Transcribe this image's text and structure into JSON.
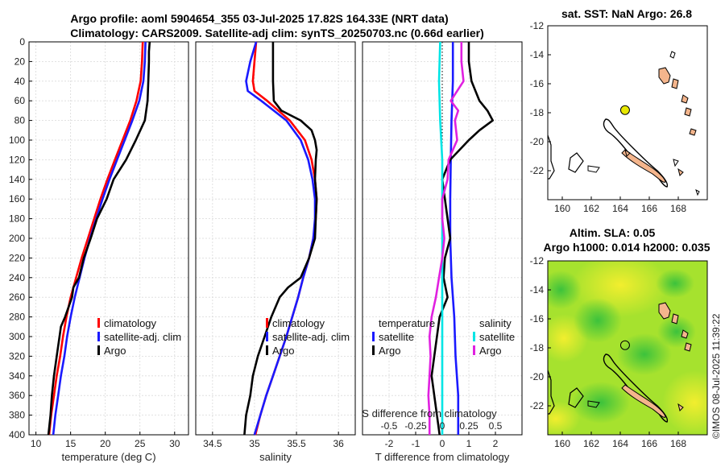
{
  "title_line1": "Argo profile: aoml 5904654_355 03-Jul-2025 17.82S 164.33E (NRT data)",
  "title_line2": "Climatology: CARS2009. Satellite-adj clim: synTS_20250703.nc (0.66d earlier)",
  "stamp": "©IMOS 08-Jul-2025 11:39:22",
  "colors": {
    "climatology": "#ff0000",
    "satellite": "#1a1aff",
    "argo": "#000000",
    "salinity_sat": "#00e5e5",
    "salinity_argo": "#e020e0",
    "land": "#f4b58c",
    "marker": "#e8e800"
  },
  "chart_data": [
    {
      "id": "temperature",
      "type": "line",
      "xlabel": "temperature (deg C)",
      "xlim": [
        9,
        32
      ],
      "xticks": [
        10,
        15,
        20,
        25,
        30
      ],
      "ylim": [
        0,
        400
      ],
      "yticks": [
        0,
        20,
        40,
        60,
        80,
        100,
        120,
        140,
        160,
        180,
        200,
        220,
        240,
        260,
        280,
        300,
        320,
        340,
        360,
        380,
        400
      ],
      "legend": {
        "items": [
          "climatology",
          "satellite-adj. clim",
          "Argo"
        ],
        "placement": "lower-right"
      },
      "series": [
        {
          "name": "climatology",
          "depth": [
            0,
            20,
            40,
            60,
            80,
            100,
            120,
            140,
            160,
            180,
            200,
            220,
            240,
            260,
            280,
            300,
            320,
            340,
            360,
            380,
            400
          ],
          "values": [
            25.4,
            25.3,
            25.1,
            24.5,
            23.6,
            22.5,
            21.4,
            20.3,
            19.3,
            18.4,
            17.5,
            16.6,
            15.8,
            15.0,
            14.4,
            13.9,
            13.5,
            13.0,
            12.6,
            12.2,
            11.9
          ]
        },
        {
          "name": "satellite-adj. clim",
          "depth": [
            0,
            20,
            40,
            60,
            80,
            100,
            120,
            140,
            160,
            180,
            200,
            220,
            240,
            260,
            280,
            300,
            320,
            340,
            360,
            380,
            400
          ],
          "values": [
            25.8,
            25.7,
            25.5,
            24.9,
            23.9,
            22.8,
            21.7,
            20.6,
            19.6,
            18.7,
            17.8,
            17.0,
            16.3,
            15.6,
            15.0,
            14.5,
            14.1,
            13.6,
            13.2,
            12.8,
            12.5
          ]
        },
        {
          "name": "Argo",
          "depth": [
            0,
            10,
            20,
            40,
            60,
            70,
            80,
            100,
            120,
            140,
            160,
            180,
            200,
            220,
            240,
            250,
            260,
            280,
            290,
            300,
            320,
            340,
            360,
            380,
            400
          ],
          "values": [
            26.4,
            26.3,
            26.3,
            26.2,
            26.1,
            25.9,
            25.7,
            24.4,
            23.0,
            21.2,
            20.2,
            18.8,
            17.9,
            16.9,
            16.2,
            15.4,
            15.2,
            14.2,
            13.6,
            13.4,
            13.0,
            12.6,
            12.3,
            12.1,
            11.8
          ]
        }
      ]
    },
    {
      "id": "salinity",
      "type": "line",
      "xlabel": "salinity",
      "xlim": [
        34.3,
        36.2
      ],
      "xticks": [
        34.5,
        35,
        35.5,
        36
      ],
      "ylim": [
        0,
        400
      ],
      "legend": {
        "items": [
          "climatology",
          "satellite-adj. clim",
          "Argo"
        ],
        "placement": "lower-right"
      },
      "series": [
        {
          "name": "climatology",
          "depth": [
            0,
            20,
            40,
            50,
            60,
            80,
            100,
            120,
            140,
            160,
            180,
            200,
            220,
            240,
            260,
            280,
            300,
            320,
            340,
            360,
            380,
            400
          ],
          "values": [
            35.02,
            35.0,
            34.98,
            35.0,
            35.15,
            35.42,
            35.6,
            35.68,
            35.72,
            35.74,
            35.73,
            35.7,
            35.65,
            35.58,
            35.52,
            35.45,
            35.38,
            35.3,
            35.22,
            35.14,
            35.07,
            35.01
          ]
        },
        {
          "name": "satellite-adj. clim",
          "depth": [
            0,
            20,
            40,
            50,
            60,
            80,
            100,
            120,
            140,
            160,
            180,
            200,
            220,
            240,
            260,
            280,
            300,
            320,
            340,
            360,
            380,
            400
          ],
          "values": [
            35.02,
            34.95,
            34.9,
            34.92,
            35.08,
            35.38,
            35.55,
            35.64,
            35.69,
            35.72,
            35.72,
            35.7,
            35.65,
            35.58,
            35.52,
            35.45,
            35.38,
            35.3,
            35.22,
            35.14,
            35.07,
            35.0
          ]
        },
        {
          "name": "Argo",
          "depth": [
            0,
            20,
            40,
            60,
            70,
            80,
            90,
            100,
            110,
            120,
            140,
            160,
            180,
            200,
            220,
            240,
            250,
            260,
            280,
            300,
            320,
            340,
            360,
            380,
            400
          ],
          "values": [
            35.22,
            35.22,
            35.22,
            35.23,
            35.32,
            35.55,
            35.68,
            35.72,
            35.74,
            35.73,
            35.72,
            35.74,
            35.73,
            35.72,
            35.65,
            35.55,
            35.4,
            35.3,
            35.2,
            35.12,
            35.04,
            34.98,
            34.95,
            34.9,
            34.88
          ]
        }
      ]
    },
    {
      "id": "difference",
      "type": "line",
      "xlabel": "T difference from climatology",
      "xlabel_top": "S difference from climatology",
      "xlim": [
        -3,
        3
      ],
      "xticks": [
        -2,
        -1,
        0,
        1,
        2
      ],
      "sticks": [
        "-0.5",
        "-0.25",
        "0",
        "0.25",
        "0.5"
      ],
      "ylim": [
        0,
        400
      ],
      "legend": {
        "temperature_header": "temperature",
        "salinity_header": "salinity",
        "items_t": [
          "satellite",
          "Argo"
        ],
        "items_s": [
          "satellite",
          "Argo"
        ]
      },
      "series": [
        {
          "name": "T satellite",
          "depth": [
            0,
            40,
            80,
            120,
            160,
            200,
            240,
            280,
            320,
            360,
            400
          ],
          "values": [
            0.4,
            0.4,
            0.35,
            0.32,
            0.3,
            0.3,
            0.35,
            0.45,
            0.5,
            0.6,
            0.6
          ]
        },
        {
          "name": "T Argo",
          "depth": [
            0,
            20,
            40,
            60,
            70,
            80,
            90,
            100,
            120,
            140,
            160,
            180,
            200,
            220,
            240,
            260,
            280,
            300,
            320,
            340,
            360,
            380,
            400
          ],
          "values": [
            1.0,
            1.0,
            1.1,
            1.4,
            1.7,
            1.9,
            1.4,
            1.0,
            0.3,
            0.0,
            0.1,
            0.2,
            0.3,
            0.1,
            0.05,
            0.2,
            -0.1,
            -0.2,
            -0.3,
            -0.4,
            -0.3,
            -0.2,
            -0.1
          ]
        },
        {
          "name": "S satellite",
          "depth": [
            0,
            40,
            80,
            120,
            160,
            200,
            240,
            280,
            320,
            360,
            400
          ],
          "values": [
            -0.02,
            -0.03,
            -0.02,
            0.0,
            0.0,
            0.0,
            0.0,
            0.0,
            0.0,
            0.0,
            0.0
          ]
        },
        {
          "name": "S Argo",
          "depth": [
            0,
            20,
            40,
            60,
            70,
            80,
            100,
            120,
            140,
            160,
            180,
            200,
            220,
            240,
            260,
            280,
            300,
            320,
            340,
            360,
            380,
            400
          ],
          "values": [
            0.18,
            0.18,
            0.2,
            0.08,
            0.15,
            0.12,
            0.14,
            0.06,
            0.05,
            0.0,
            0.0,
            0.02,
            0.0,
            -0.03,
            -0.06,
            -0.1,
            -0.12,
            -0.11,
            -0.12,
            -0.13,
            -0.12,
            -0.12
          ]
        }
      ]
    },
    {
      "id": "sst_map",
      "type": "map",
      "title": "sat. SST: NaN Argo: 26.8",
      "xlim": [
        159,
        170
      ],
      "ylim": [
        -24,
        -12
      ],
      "xticks": [
        160,
        162,
        164,
        166,
        168
      ],
      "yticks": [
        -12,
        -14,
        -16,
        -18,
        -20,
        -22
      ],
      "point": {
        "lon": 164.33,
        "lat": -17.82
      }
    },
    {
      "id": "sla_map",
      "type": "map",
      "title_line1": "Altim. SLA: 0.05",
      "title_line2": "Argo h1000: 0.014 h2000: 0.035",
      "xlim": [
        159,
        170
      ],
      "ylim": [
        -24,
        -12
      ],
      "xticks": [
        160,
        162,
        164,
        166,
        168
      ],
      "yticks": [
        -12,
        -14,
        -16,
        -18,
        -20,
        -22
      ],
      "point": {
        "lon": 164.33,
        "lat": -17.82
      }
    }
  ]
}
